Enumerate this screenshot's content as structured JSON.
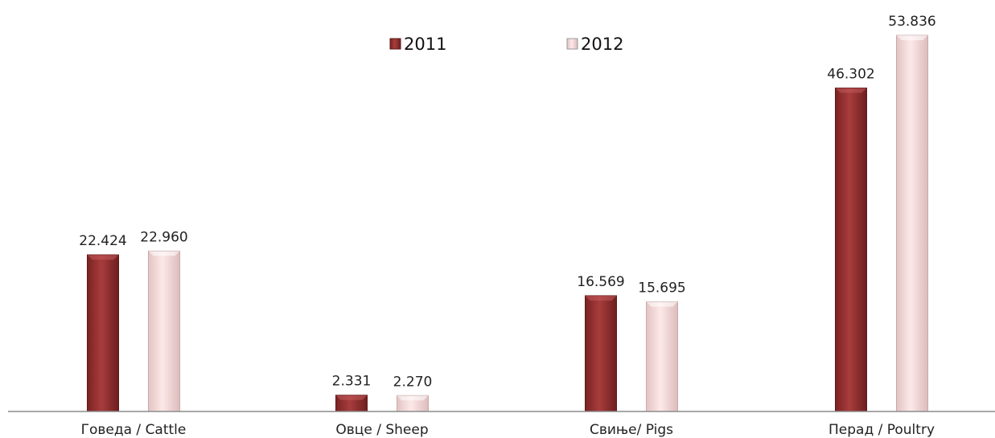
{
  "chart_data": {
    "type": "bar",
    "categories": [
      "Говеда / Cattle",
      "Овце / Sheep",
      "Свиње/ Pigs",
      "Перад / Poultry"
    ],
    "series": [
      {
        "name": "2011",
        "values": [
          22.424,
          2.331,
          16.569,
          46.302
        ],
        "labels": [
          "22.424",
          "2.331",
          "16.569",
          "46.302"
        ],
        "color": "#a33a3a"
      },
      {
        "name": "2012",
        "values": [
          22.96,
          2.27,
          15.695,
          53.836
        ],
        "labels": [
          "22.960",
          "2.270",
          "15.695",
          "53.836"
        ],
        "color": "#fbe3e3"
      }
    ],
    "ylim": [
      0,
      56
    ],
    "grid": false,
    "legend": "top-center"
  }
}
